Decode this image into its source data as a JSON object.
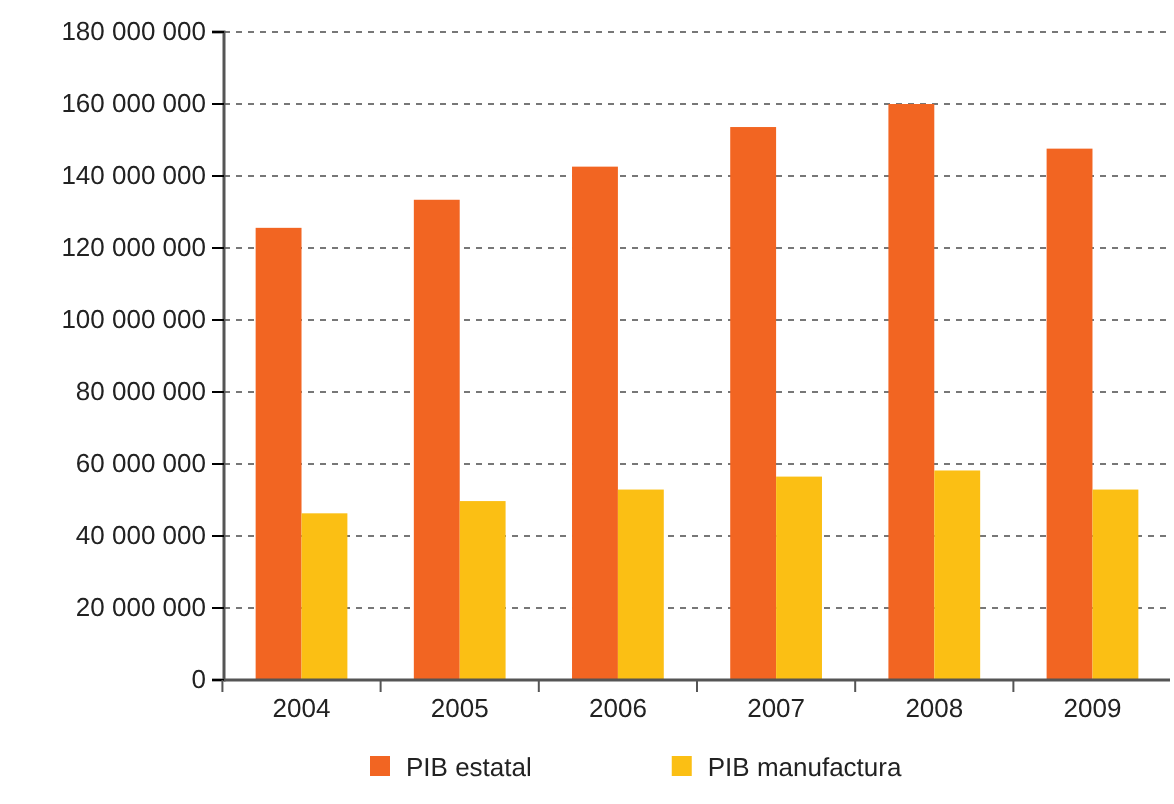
{
  "chart_data": {
    "type": "bar",
    "categories": [
      "2004",
      "2005",
      "2006",
      "2007",
      "2008",
      "2009"
    ],
    "series": [
      {
        "name": "PIB estatal",
        "color": "#f26522",
        "values": [
          125600000,
          133400000,
          142600000,
          153600000,
          160000000,
          147600000
        ]
      },
      {
        "name": "PIB manufactura",
        "color": "#fbbf14",
        "values": [
          46300000,
          49700000,
          52900000,
          56500000,
          58200000,
          52900000
        ]
      }
    ],
    "ylim": [
      0,
      180000000
    ],
    "yticks": [
      0,
      {
        "value": 20000000,
        "label": "20 000 000"
      },
      {
        "value": 40000000,
        "label": "40 000 000"
      },
      {
        "value": 60000000,
        "label": "60 000 000"
      },
      {
        "value": 80000000,
        "label": "80 000 000"
      },
      {
        "value": 100000000,
        "label": "100 000 000"
      },
      {
        "value": 120000000,
        "label": "120 000 000"
      },
      {
        "value": 140000000,
        "label": "140 000 000"
      },
      {
        "value": 160000000,
        "label": "160 000 000"
      },
      {
        "value": 180000000,
        "label": "180 000 000"
      }
    ],
    "grid": "y",
    "legend": "bottom"
  }
}
